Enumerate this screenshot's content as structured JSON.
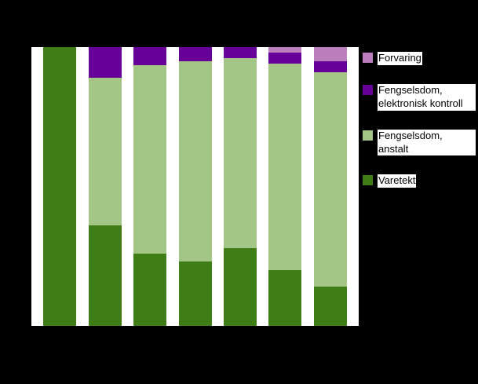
{
  "page": {
    "background_color": "#000000",
    "plot_background_color": "#ffffff"
  },
  "legend": {
    "position": "right",
    "items": [
      {
        "label": "Forvaring",
        "color": "#bd7ebd"
      },
      {
        "label": "Fengselsdom, elektronisk kontroll",
        "color": "#660099"
      },
      {
        "label": "Fengselsdom, anstalt",
        "color": "#a3c585"
      },
      {
        "label": "Varetekt",
        "color": "#3f7d16"
      }
    ]
  },
  "chart_data": {
    "type": "bar",
    "stacked": true,
    "percent": true,
    "title": "",
    "xlabel": "",
    "ylabel": "",
    "ylim": [
      0,
      100
    ],
    "grid": false,
    "legend_position": "right",
    "categories": [
      "",
      "",
      "",
      "",
      "",
      "",
      ""
    ],
    "series": [
      {
        "name": "Varetekt",
        "color": "#3f7d16",
        "values": [
          100,
          36,
          26,
          23,
          28,
          20,
          14
        ]
      },
      {
        "name": "Fengselsdom, anstalt",
        "color": "#a3c585",
        "values": [
          0,
          53,
          67.5,
          72,
          68,
          74,
          77
        ]
      },
      {
        "name": "Fengselsdom, elektronisk kontroll",
        "color": "#660099",
        "values": [
          0,
          11,
          6.5,
          5,
          4,
          4,
          4
        ]
      },
      {
        "name": "Forvaring",
        "color": "#bd7ebd",
        "values": [
          0,
          0,
          0,
          0,
          0,
          2,
          5
        ]
      }
    ]
  }
}
